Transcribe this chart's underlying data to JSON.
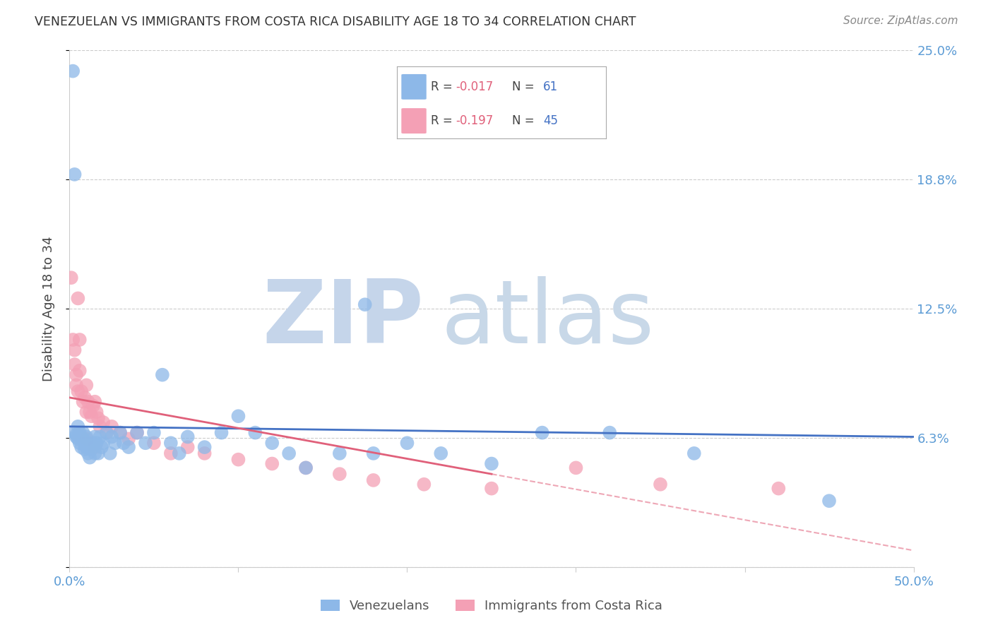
{
  "title": "VENEZUELAN VS IMMIGRANTS FROM COSTA RICA DISABILITY AGE 18 TO 34 CORRELATION CHART",
  "source": "Source: ZipAtlas.com",
  "ylabel": "Disability Age 18 to 34",
  "xmin": 0.0,
  "xmax": 0.5,
  "ymin": 0.0,
  "ymax": 0.25,
  "yticks": [
    0.0,
    0.0625,
    0.125,
    0.1875,
    0.25
  ],
  "ytick_labels": [
    "",
    "6.3%",
    "12.5%",
    "18.8%",
    "25.0%"
  ],
  "background_color": "#FFFFFF",
  "grid_color": "#CCCCCC",
  "watermark_zip": "ZIP",
  "watermark_atlas": "atlas",
  "watermark_zip_color": "#C5D5EA",
  "watermark_atlas_color": "#C8D8E8",
  "venezuelan_x": [
    0.002,
    0.003,
    0.003,
    0.004,
    0.004,
    0.005,
    0.005,
    0.006,
    0.006,
    0.007,
    0.007,
    0.008,
    0.008,
    0.009,
    0.009,
    0.01,
    0.01,
    0.011,
    0.011,
    0.012,
    0.012,
    0.013,
    0.014,
    0.015,
    0.015,
    0.016,
    0.017,
    0.018,
    0.019,
    0.02,
    0.022,
    0.024,
    0.025,
    0.027,
    0.03,
    0.032,
    0.035,
    0.04,
    0.045,
    0.05,
    0.055,
    0.06,
    0.065,
    0.07,
    0.08,
    0.09,
    0.1,
    0.11,
    0.12,
    0.13,
    0.14,
    0.16,
    0.18,
    0.2,
    0.22,
    0.25,
    0.28,
    0.32,
    0.37,
    0.45,
    0.175
  ],
  "venezuelan_y": [
    0.24,
    0.19,
    0.065,
    0.064,
    0.063,
    0.062,
    0.068,
    0.065,
    0.06,
    0.063,
    0.058,
    0.065,
    0.062,
    0.06,
    0.057,
    0.063,
    0.058,
    0.06,
    0.055,
    0.058,
    0.053,
    0.057,
    0.06,
    0.055,
    0.063,
    0.06,
    0.055,
    0.063,
    0.058,
    0.06,
    0.065,
    0.055,
    0.063,
    0.06,
    0.065,
    0.06,
    0.058,
    0.065,
    0.06,
    0.065,
    0.093,
    0.06,
    0.055,
    0.063,
    0.058,
    0.065,
    0.073,
    0.065,
    0.06,
    0.055,
    0.048,
    0.055,
    0.055,
    0.06,
    0.055,
    0.05,
    0.065,
    0.065,
    0.055,
    0.032,
    0.127
  ],
  "costarica_x": [
    0.001,
    0.002,
    0.003,
    0.003,
    0.004,
    0.004,
    0.005,
    0.005,
    0.006,
    0.006,
    0.007,
    0.008,
    0.009,
    0.01,
    0.01,
    0.011,
    0.012,
    0.013,
    0.014,
    0.015,
    0.016,
    0.017,
    0.018,
    0.02,
    0.022,
    0.025,
    0.03,
    0.035,
    0.04,
    0.05,
    0.06,
    0.07,
    0.08,
    0.1,
    0.12,
    0.14,
    0.16,
    0.18,
    0.21,
    0.25,
    0.3,
    0.35,
    0.42,
    0.01,
    0.015
  ],
  "costarica_y": [
    0.14,
    0.11,
    0.105,
    0.098,
    0.093,
    0.088,
    0.085,
    0.13,
    0.095,
    0.11,
    0.085,
    0.08,
    0.082,
    0.075,
    0.088,
    0.08,
    0.075,
    0.073,
    0.078,
    0.08,
    0.075,
    0.072,
    0.068,
    0.07,
    0.065,
    0.068,
    0.065,
    0.062,
    0.065,
    0.06,
    0.055,
    0.058,
    0.055,
    0.052,
    0.05,
    0.048,
    0.045,
    0.042,
    0.04,
    0.038,
    0.048,
    0.04,
    0.038,
    0.062,
    0.058
  ],
  "blue_line_color": "#4472C4",
  "pink_line_color": "#E0607A",
  "blue_dot_color": "#8DB8E8",
  "pink_dot_color": "#F4A0B5",
  "tick_label_color": "#5B9BD5",
  "title_color": "#333333",
  "source_color": "#888888",
  "legend_R1": "-0.017",
  "legend_N1": "61",
  "legend_R2": "-0.197",
  "legend_N2": "45",
  "legend_label1": "Venezuelans",
  "legend_label2": "Immigrants from Costa Rica"
}
